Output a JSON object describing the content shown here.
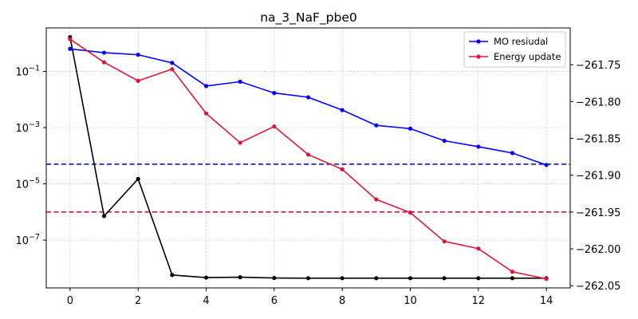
{
  "chart_data": {
    "type": "line",
    "title": "na_3_NaF_pbe0",
    "x_ticks": [
      0,
      2,
      4,
      6,
      8,
      10,
      12,
      14
    ],
    "xlim": [
      -0.7,
      14.7
    ],
    "left_axis": {
      "scale": "log",
      "ylim": [
        2e-09,
        3.5
      ],
      "ticks": [
        {
          "value": 0.1,
          "base": "10",
          "exp": "−1"
        },
        {
          "value": 0.001,
          "base": "10",
          "exp": "−3"
        },
        {
          "value": 1e-05,
          "base": "10",
          "exp": "−5"
        },
        {
          "value": 1e-07,
          "base": "10",
          "exp": "−7"
        }
      ]
    },
    "right_axis": {
      "scale": "linear",
      "ylim": [
        -262.053,
        -261.7
      ],
      "ticks": [
        -261.75,
        -261.8,
        -261.85,
        -261.9,
        -261.95,
        -262.0,
        -262.05
      ],
      "tick_labels": [
        "−261.75",
        "−261.80",
        "−261.85",
        "−261.90",
        "−261.95",
        "−262.00",
        "−262.05"
      ]
    },
    "series": [
      {
        "name": "MO resiudal",
        "axis": "left",
        "color": "#0000ff",
        "x": [
          0,
          1,
          2,
          3,
          4,
          5,
          6,
          7,
          8,
          9,
          10,
          11,
          12,
          13,
          14
        ],
        "values": [
          0.63,
          0.46,
          0.39,
          0.2,
          0.03,
          0.043,
          0.017,
          0.012,
          0.0042,
          0.0012,
          0.00092,
          0.00034,
          0.00021,
          0.000125,
          4.7e-05
        ]
      },
      {
        "name": "Energy update",
        "axis": "left",
        "color": "#dc143c",
        "x": [
          0,
          1,
          2,
          3,
          4,
          5,
          6,
          7,
          8,
          9,
          10,
          11,
          12,
          13,
          14
        ],
        "values": [
          1.4,
          0.21,
          0.046,
          0.12,
          0.0032,
          0.00029,
          0.0011,
          0.00011,
          3.3e-05,
          2.8e-06,
          9.5e-07,
          9e-08,
          5e-08,
          7.5e-09,
          4.2e-09
        ]
      },
      {
        "axis": "right",
        "color": "#000000",
        "x": [
          0,
          1,
          2,
          3,
          4,
          5,
          6,
          7,
          8,
          9,
          10,
          11,
          12,
          13,
          14
        ],
        "values": [
          -261.7125,
          -261.9555,
          -261.905,
          -262.0355,
          -262.039,
          -262.0385,
          -262.0395,
          -262.0398,
          -262.0398,
          -262.0398,
          -262.0398,
          -262.0398,
          -262.0398,
          -262.0398,
          -262.0398
        ]
      }
    ],
    "threshold_lines": [
      {
        "axis": "left",
        "value": 5e-05,
        "color": "#0000cd",
        "style": "dashed"
      },
      {
        "axis": "left",
        "value": 1e-06,
        "color": "#dc143c",
        "style": "dashed"
      }
    ],
    "grid": true,
    "legend_placement": "top-right"
  }
}
